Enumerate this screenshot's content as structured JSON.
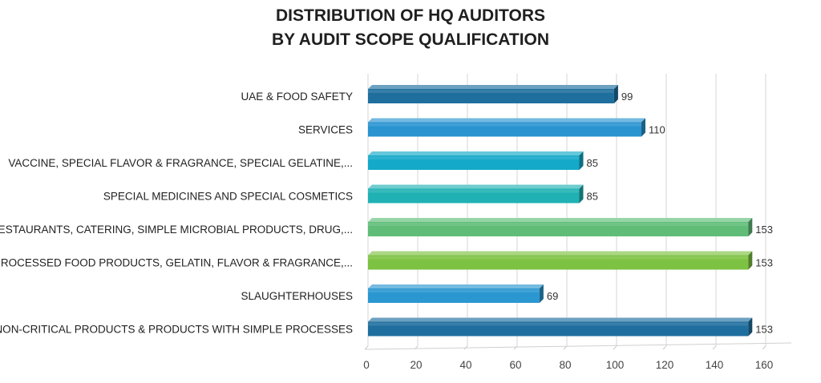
{
  "chart_data": {
    "type": "bar",
    "orientation": "horizontal",
    "title_lines": [
      "DISTRIBUTION OF HQ AUDITORS",
      "BY AUDIT SCOPE QUALIFICATION"
    ],
    "categories": [
      "UAE & FOOD SAFETY",
      "SERVICES",
      "VACCINE, SPECIAL FLAVOR & FRAGRANCE, SPECIAL GELATINE,...",
      "SPECIAL MEDICINES AND SPECIAL COSMETICS",
      "RESTAURANTS, CATERING, SIMPLE MICROBIAL PRODUCTS, DRUG,...",
      "PROCESSED FOOD PRODUCTS, GELATIN, FLAVOR & FRAGRANCE,...",
      "SLAUGHTERHOUSES",
      "NON-CRITICAL PRODUCTS & PRODUCTS WITH SIMPLE PROCESSES"
    ],
    "values": [
      99,
      110,
      85,
      85,
      153,
      153,
      69,
      153
    ],
    "bar_colors": [
      "#1f6f9e",
      "#2994cf",
      "#14a9c8",
      "#1fb1b3",
      "#5fbd78",
      "#7dc242",
      "#2a97d0",
      "#1f6f9e"
    ],
    "xlim": [
      0,
      160
    ],
    "xticks": [
      0,
      20,
      40,
      60,
      80,
      100,
      120,
      140,
      160
    ],
    "grid": true,
    "legend": "none"
  }
}
